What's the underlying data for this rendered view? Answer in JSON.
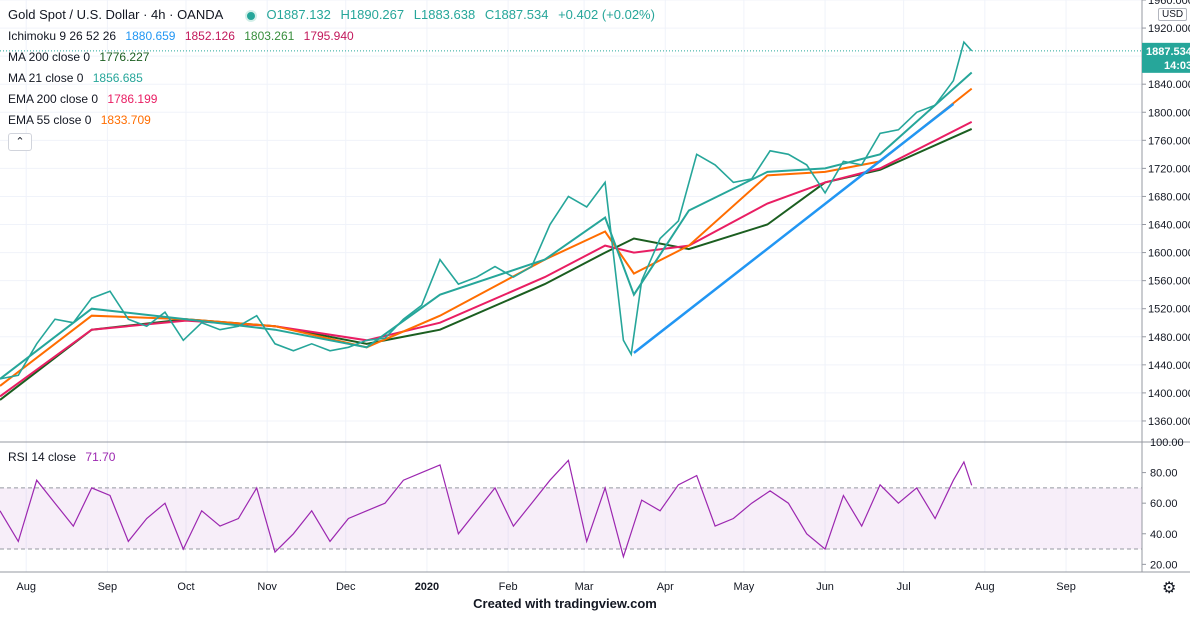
{
  "header": {
    "symbol": "Gold Spot / U.S. Dollar · 4h · OANDA",
    "open": "O1887.132",
    "high": "H1890.267",
    "low": "L1883.638",
    "close": "C1887.534",
    "change": "+0.402 (+0.02%)"
  },
  "indicators": {
    "ichimoku": {
      "label": "Ichimoku 9 26 52 26",
      "v1": "1880.659",
      "v2": "1852.126",
      "v3": "1803.261",
      "v4": "1795.940",
      "c1": "#2196f3",
      "c2": "#c2185b",
      "c3": "#388e3c",
      "c4": "#c2185b"
    },
    "ma200": {
      "label": "MA 200 close 0",
      "value": "1776.227",
      "color": "#1b5e20"
    },
    "ma21": {
      "label": "MA 21 close 0",
      "value": "1856.685",
      "color": "#26a69a"
    },
    "ema200": {
      "label": "EMA 200 close 0",
      "value": "1786.199",
      "color": "#e91e63"
    },
    "ema55": {
      "label": "EMA 55 close 0",
      "value": "1833.709",
      "color": "#ff6d00"
    },
    "rsi": {
      "label": "RSI 14 close",
      "value": "71.70",
      "color": "#9c27b0"
    }
  },
  "price_axis": {
    "currency": "USD",
    "last_price": "1887.534",
    "countdown": "14:03"
  },
  "footer": "Created with tradingview.com",
  "chart_data": {
    "type": "line",
    "title": "Gold Spot / U.S. Dollar · 4h · OANDA",
    "x_range": [
      "2019-07-22",
      "2020-09-30"
    ],
    "x_tick_labels": [
      "Aug",
      "Sep",
      "Oct",
      "Nov",
      "Dec",
      "2020",
      "Feb",
      "Mar",
      "Apr",
      "May",
      "Jun",
      "Jul",
      "Aug",
      "Sep"
    ],
    "ylim": [
      1330,
      1960
    ],
    "y_ticks": [
      1360,
      1400,
      1440,
      1480,
      1520,
      1560,
      1600,
      1640,
      1680,
      1720,
      1760,
      1800,
      1840,
      1880,
      1920,
      1960
    ],
    "y_tick_labels": [
      "1360.000",
      "1400.000",
      "1440.000",
      "1480.000",
      "1520.000",
      "1560.000",
      "1600.000",
      "1640.000",
      "1680.000",
      "1720.000",
      "1760.000",
      "1800.000",
      "1840.000",
      "1880.000",
      "1920.000",
      "1960.000"
    ],
    "price_series": {
      "name": "Gold Spot",
      "color": "#26a69a",
      "points": [
        [
          "2019-07-22",
          1420
        ],
        [
          "2019-07-29",
          1425
        ],
        [
          "2019-08-05",
          1470
        ],
        [
          "2019-08-12",
          1505
        ],
        [
          "2019-08-19",
          1500
        ],
        [
          "2019-08-26",
          1535
        ],
        [
          "2019-09-02",
          1545
        ],
        [
          "2019-09-09",
          1505
        ],
        [
          "2019-09-16",
          1495
        ],
        [
          "2019-09-23",
          1515
        ],
        [
          "2019-09-30",
          1475
        ],
        [
          "2019-10-07",
          1500
        ],
        [
          "2019-10-14",
          1490
        ],
        [
          "2019-10-21",
          1495
        ],
        [
          "2019-10-28",
          1510
        ],
        [
          "2019-11-04",
          1470
        ],
        [
          "2019-11-11",
          1460
        ],
        [
          "2019-11-18",
          1470
        ],
        [
          "2019-11-25",
          1460
        ],
        [
          "2019-12-02",
          1465
        ],
        [
          "2019-12-09",
          1475
        ],
        [
          "2019-12-16",
          1478
        ],
        [
          "2019-12-23",
          1505
        ],
        [
          "2019-12-30",
          1525
        ],
        [
          "2020-01-06",
          1590
        ],
        [
          "2020-01-13",
          1555
        ],
        [
          "2020-01-20",
          1565
        ],
        [
          "2020-01-27",
          1580
        ],
        [
          "2020-02-03",
          1565
        ],
        [
          "2020-02-10",
          1580
        ],
        [
          "2020-02-17",
          1640
        ],
        [
          "2020-02-24",
          1680
        ],
        [
          "2020-03-02",
          1665
        ],
        [
          "2020-03-09",
          1700
        ],
        [
          "2020-03-16",
          1475
        ],
        [
          "2020-03-19",
          1455
        ],
        [
          "2020-03-23",
          1560
        ],
        [
          "2020-03-30",
          1620
        ],
        [
          "2020-04-06",
          1645
        ],
        [
          "2020-04-13",
          1740
        ],
        [
          "2020-04-20",
          1725
        ],
        [
          "2020-04-27",
          1700
        ],
        [
          "2020-05-04",
          1705
        ],
        [
          "2020-05-11",
          1745
        ],
        [
          "2020-05-18",
          1740
        ],
        [
          "2020-05-25",
          1725
        ],
        [
          "2020-06-01",
          1685
        ],
        [
          "2020-06-08",
          1730
        ],
        [
          "2020-06-15",
          1725
        ],
        [
          "2020-06-22",
          1770
        ],
        [
          "2020-06-29",
          1775
        ],
        [
          "2020-07-06",
          1800
        ],
        [
          "2020-07-13",
          1810
        ],
        [
          "2020-07-20",
          1845
        ],
        [
          "2020-07-24",
          1900
        ],
        [
          "2020-07-27",
          1887.534
        ]
      ]
    },
    "moving_averages": [
      {
        "name": "MA 200 close 0",
        "color": "#1b5e20",
        "points": [
          [
            "2019-07-22",
            1390
          ],
          [
            "2019-08-26",
            1490
          ],
          [
            "2019-10-01",
            1505
          ],
          [
            "2019-11-04",
            1495
          ],
          [
            "2019-12-09",
            1470
          ],
          [
            "2020-01-06",
            1490
          ],
          [
            "2020-02-15",
            1555
          ],
          [
            "2020-03-09",
            1600
          ],
          [
            "2020-03-20",
            1620
          ],
          [
            "2020-04-10",
            1605
          ],
          [
            "2020-05-10",
            1640
          ],
          [
            "2020-06-01",
            1700
          ],
          [
            "2020-06-22",
            1718
          ],
          [
            "2020-07-27",
            1776.227
          ]
        ]
      },
      {
        "name": "EMA 200 close 0",
        "color": "#e91e63",
        "points": [
          [
            "2019-07-22",
            1395
          ],
          [
            "2019-08-26",
            1490
          ],
          [
            "2019-10-01",
            1503
          ],
          [
            "2019-11-04",
            1495
          ],
          [
            "2019-12-09",
            1475
          ],
          [
            "2020-01-06",
            1500
          ],
          [
            "2020-02-15",
            1565
          ],
          [
            "2020-03-09",
            1610
          ],
          [
            "2020-03-20",
            1600
          ],
          [
            "2020-04-10",
            1610
          ],
          [
            "2020-05-10",
            1670
          ],
          [
            "2020-06-01",
            1700
          ],
          [
            "2020-06-22",
            1720
          ],
          [
            "2020-07-27",
            1786.199
          ]
        ]
      },
      {
        "name": "EMA 55 close 0",
        "color": "#ff6d00",
        "points": [
          [
            "2019-07-22",
            1410
          ],
          [
            "2019-08-26",
            1510
          ],
          [
            "2019-10-01",
            1505
          ],
          [
            "2019-11-04",
            1495
          ],
          [
            "2019-12-09",
            1465
          ],
          [
            "2020-01-06",
            1510
          ],
          [
            "2020-02-15",
            1590
          ],
          [
            "2020-03-09",
            1630
          ],
          [
            "2020-03-20",
            1570
          ],
          [
            "2020-04-10",
            1610
          ],
          [
            "2020-05-10",
            1710
          ],
          [
            "2020-06-01",
            1715
          ],
          [
            "2020-06-22",
            1730
          ],
          [
            "2020-07-27",
            1833.709
          ]
        ]
      },
      {
        "name": "MA 21 close 0",
        "color": "#26a69a",
        "points": [
          [
            "2019-07-22",
            1420
          ],
          [
            "2019-08-26",
            1520
          ],
          [
            "2019-10-01",
            1505
          ],
          [
            "2019-11-04",
            1490
          ],
          [
            "2019-12-09",
            1465
          ],
          [
            "2020-01-06",
            1540
          ],
          [
            "2020-02-15",
            1590
          ],
          [
            "2020-03-09",
            1650
          ],
          [
            "2020-03-20",
            1540
          ],
          [
            "2020-04-10",
            1660
          ],
          [
            "2020-05-10",
            1715
          ],
          [
            "2020-06-01",
            1720
          ],
          [
            "2020-06-22",
            1740
          ],
          [
            "2020-07-27",
            1856.685
          ]
        ]
      }
    ],
    "trendline": {
      "color": "#2196f3",
      "points": [
        [
          "2020-03-20",
          1457
        ],
        [
          "2020-07-20",
          1812
        ]
      ]
    },
    "rsi": {
      "name": "RSI 14 close",
      "color": "#9c27b0",
      "ylim": [
        15,
        100
      ],
      "y_ticks": [
        20,
        40,
        60,
        80,
        100
      ],
      "y_tick_labels": [
        "20.00",
        "40.00",
        "60.00",
        "80.00",
        "100.00"
      ],
      "band": [
        30,
        70
      ],
      "points": [
        [
          "2019-07-22",
          55
        ],
        [
          "2019-07-29",
          35
        ],
        [
          "2019-08-05",
          75
        ],
        [
          "2019-08-12",
          60
        ],
        [
          "2019-08-19",
          45
        ],
        [
          "2019-08-26",
          70
        ],
        [
          "2019-09-02",
          65
        ],
        [
          "2019-09-09",
          35
        ],
        [
          "2019-09-16",
          50
        ],
        [
          "2019-09-23",
          60
        ],
        [
          "2019-09-30",
          30
        ],
        [
          "2019-10-07",
          55
        ],
        [
          "2019-10-14",
          45
        ],
        [
          "2019-10-21",
          50
        ],
        [
          "2019-10-28",
          70
        ],
        [
          "2019-11-04",
          28
        ],
        [
          "2019-11-11",
          40
        ],
        [
          "2019-11-18",
          55
        ],
        [
          "2019-11-25",
          35
        ],
        [
          "2019-12-02",
          50
        ],
        [
          "2019-12-09",
          55
        ],
        [
          "2019-12-16",
          60
        ],
        [
          "2019-12-23",
          75
        ],
        [
          "2019-12-30",
          80
        ],
        [
          "2020-01-06",
          85
        ],
        [
          "2020-01-13",
          40
        ],
        [
          "2020-01-20",
          55
        ],
        [
          "2020-01-27",
          70
        ],
        [
          "2020-02-03",
          45
        ],
        [
          "2020-02-10",
          60
        ],
        [
          "2020-02-17",
          75
        ],
        [
          "2020-02-24",
          88
        ],
        [
          "2020-03-02",
          35
        ],
        [
          "2020-03-09",
          70
        ],
        [
          "2020-03-16",
          25
        ],
        [
          "2020-03-23",
          62
        ],
        [
          "2020-03-30",
          55
        ],
        [
          "2020-04-06",
          72
        ],
        [
          "2020-04-13",
          78
        ],
        [
          "2020-04-20",
          45
        ],
        [
          "2020-04-27",
          50
        ],
        [
          "2020-05-04",
          60
        ],
        [
          "2020-05-11",
          68
        ],
        [
          "2020-05-18",
          60
        ],
        [
          "2020-05-25",
          40
        ],
        [
          "2020-06-01",
          30
        ],
        [
          "2020-06-08",
          65
        ],
        [
          "2020-06-15",
          45
        ],
        [
          "2020-06-22",
          72
        ],
        [
          "2020-06-29",
          60
        ],
        [
          "2020-07-06",
          70
        ],
        [
          "2020-07-13",
          50
        ],
        [
          "2020-07-20",
          75
        ],
        [
          "2020-07-24",
          87
        ],
        [
          "2020-07-27",
          71.7
        ]
      ]
    }
  }
}
